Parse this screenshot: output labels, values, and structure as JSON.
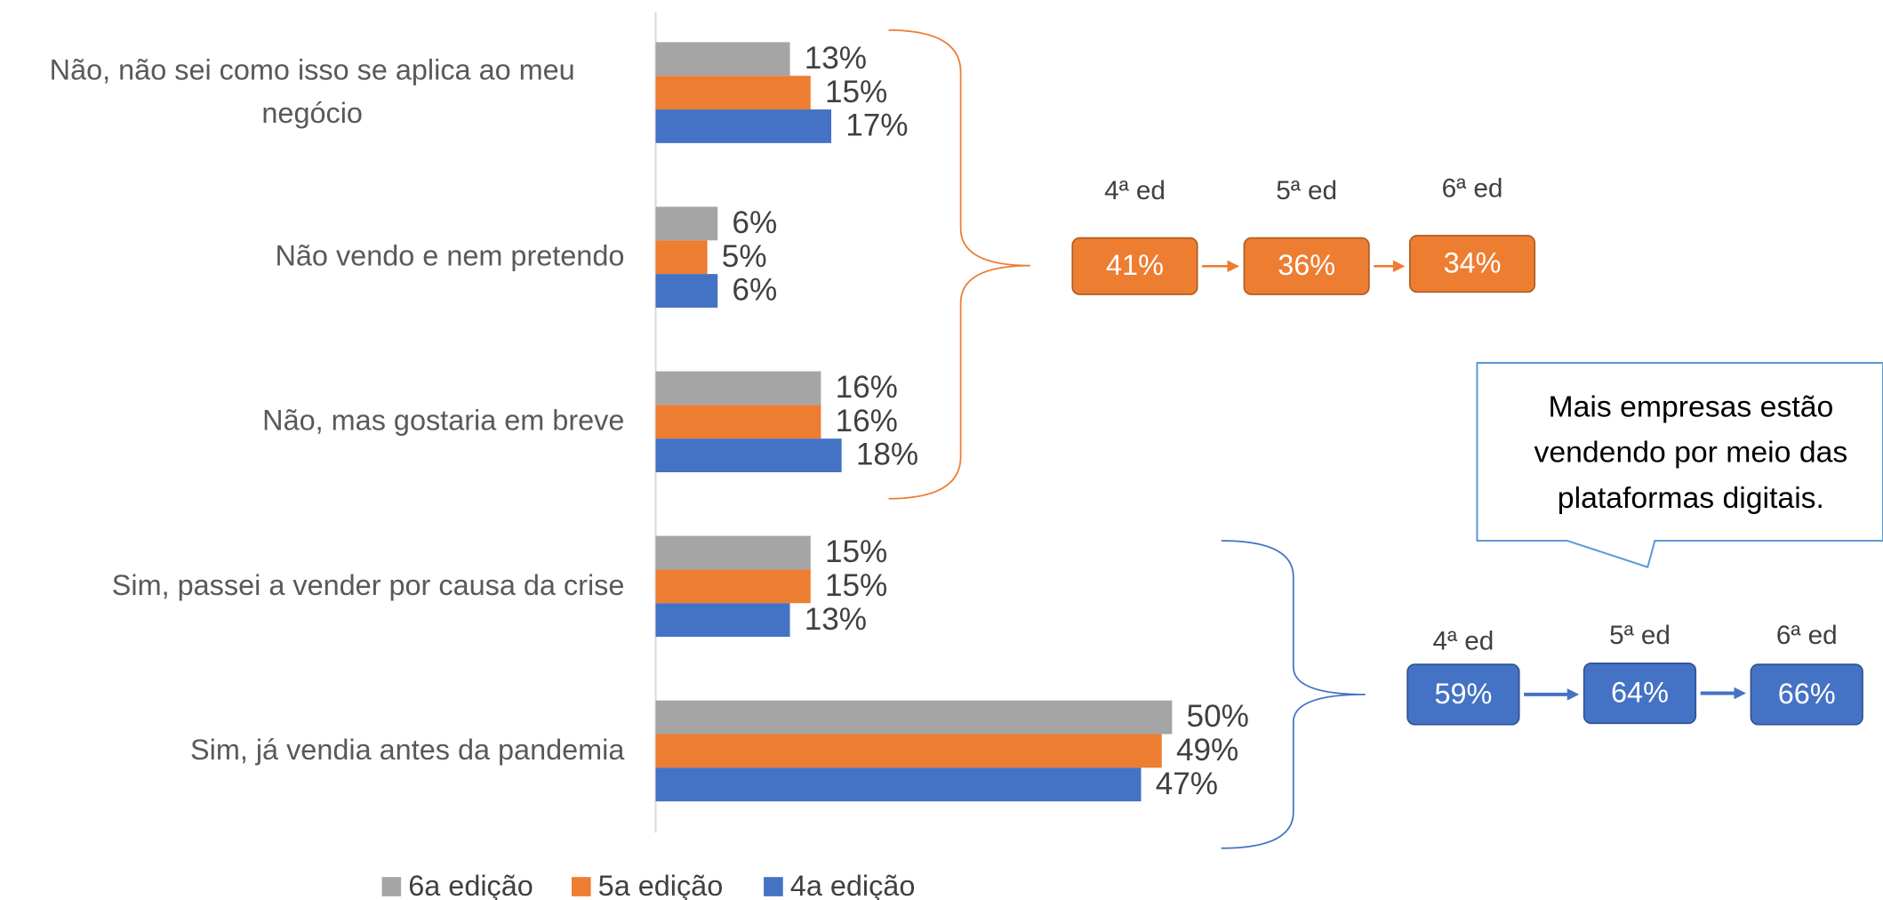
{
  "chart_data": {
    "type": "bar",
    "orientation": "horizontal",
    "categories": [
      "Não, não sei como isso se aplica ao meu negócio",
      "Não vendo e nem pretendo",
      "Não, mas gostaria em breve",
      "Sim, passei a vender por causa da crise",
      "Sim, já vendia antes da pandemia"
    ],
    "series": [
      {
        "name": "6a edição",
        "color": "#a5a5a5",
        "values": [
          13,
          6,
          16,
          15,
          50
        ],
        "value_labels": [
          "13%",
          "6%",
          "16%",
          "15%",
          "50%"
        ]
      },
      {
        "name": "5a edição",
        "color": "#ed7d31",
        "values": [
          15,
          5,
          16,
          15,
          49
        ],
        "value_labels": [
          "15%",
          "5%",
          "16%",
          "15%",
          "49%"
        ]
      },
      {
        "name": "4a edição",
        "color": "#4472c4",
        "values": [
          17,
          6,
          18,
          13,
          47
        ],
        "value_labels": [
          "17%",
          "6%",
          "18%",
          "13%",
          "47%"
        ]
      }
    ],
    "legend": "bottom",
    "annotations": {
      "groups": [
        {
          "color": "#ed7d31",
          "labels": [
            "4ª ed",
            "5ª ed",
            "6ª ed"
          ],
          "values": [
            41,
            36,
            34
          ],
          "value_labels": [
            "41%",
            "36%",
            "34%"
          ]
        },
        {
          "color": "#4472c4",
          "labels": [
            "4ª ed",
            "5ª ed",
            "6ª ed"
          ],
          "values": [
            59,
            64,
            66
          ],
          "value_labels": [
            "59%",
            "64%",
            "66%"
          ]
        }
      ],
      "callout": [
        "Mais empresas estão",
        "vendendo por meio das",
        "plataformas digitais."
      ]
    }
  }
}
